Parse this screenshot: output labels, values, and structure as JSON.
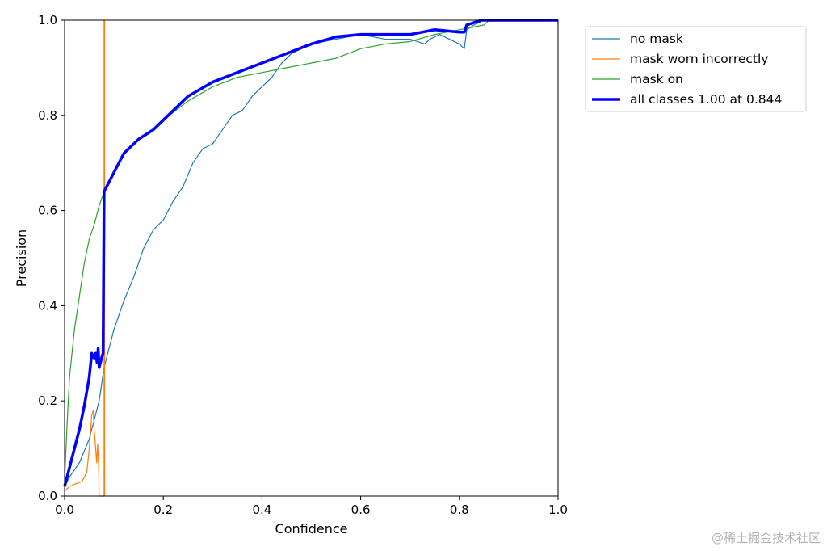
{
  "chart_data": {
    "type": "line",
    "title": "",
    "xlabel": "Confidence",
    "ylabel": "Precision",
    "xlim": [
      0,
      1
    ],
    "ylim": [
      0,
      1
    ],
    "xticks": [
      "0.0",
      "0.2",
      "0.4",
      "0.6",
      "0.8",
      "1.0"
    ],
    "yticks": [
      "0.0",
      "0.2",
      "0.4",
      "0.6",
      "0.8",
      "1.0"
    ],
    "grid": false,
    "legend_position": "outside-top-right",
    "series": [
      {
        "name": "no mask",
        "color": "#1f77b4",
        "points": [
          [
            0,
            0.02
          ],
          [
            0.01,
            0.04
          ],
          [
            0.03,
            0.07
          ],
          [
            0.05,
            0.12
          ],
          [
            0.07,
            0.2
          ],
          [
            0.08,
            0.27
          ],
          [
            0.09,
            0.31
          ],
          [
            0.1,
            0.35
          ],
          [
            0.12,
            0.41
          ],
          [
            0.14,
            0.46
          ],
          [
            0.16,
            0.52
          ],
          [
            0.18,
            0.56
          ],
          [
            0.2,
            0.58
          ],
          [
            0.22,
            0.62
          ],
          [
            0.24,
            0.65
          ],
          [
            0.26,
            0.7
          ],
          [
            0.28,
            0.73
          ],
          [
            0.3,
            0.74
          ],
          [
            0.32,
            0.77
          ],
          [
            0.34,
            0.8
          ],
          [
            0.36,
            0.81
          ],
          [
            0.38,
            0.84
          ],
          [
            0.4,
            0.86
          ],
          [
            0.42,
            0.88
          ],
          [
            0.44,
            0.91
          ],
          [
            0.46,
            0.93
          ],
          [
            0.48,
            0.94
          ],
          [
            0.5,
            0.95
          ],
          [
            0.55,
            0.96
          ],
          [
            0.6,
            0.97
          ],
          [
            0.65,
            0.96
          ],
          [
            0.7,
            0.96
          ],
          [
            0.73,
            0.95
          ],
          [
            0.74,
            0.96
          ],
          [
            0.76,
            0.97
          ],
          [
            0.78,
            0.96
          ],
          [
            0.8,
            0.95
          ],
          [
            0.81,
            0.94
          ],
          [
            0.815,
            0.98
          ],
          [
            0.83,
            0.99
          ],
          [
            0.85,
            1.0
          ],
          [
            1.0,
            1.0
          ]
        ]
      },
      {
        "name": "mask worn incorrectly",
        "color": "#ff7f0e",
        "points": [
          [
            0,
            0.01
          ],
          [
            0.01,
            0.02
          ],
          [
            0.02,
            0.025
          ],
          [
            0.035,
            0.03
          ],
          [
            0.045,
            0.05
          ],
          [
            0.05,
            0.1
          ],
          [
            0.055,
            0.17
          ],
          [
            0.058,
            0.18
          ],
          [
            0.06,
            0.14
          ],
          [
            0.063,
            0.1
          ],
          [
            0.065,
            0.07
          ],
          [
            0.067,
            0.11
          ],
          [
            0.069,
            0.06
          ],
          [
            0.07,
            0.0
          ],
          [
            0.075,
            0.0
          ],
          [
            0.08,
            0.0
          ],
          [
            0.08,
            1.0
          ],
          [
            0.081,
            1.0
          ],
          [
            0.081,
            0.0
          ]
        ]
      },
      {
        "name": "mask on",
        "color": "#2ca02c",
        "points": [
          [
            0,
            0.03
          ],
          [
            0.005,
            0.15
          ],
          [
            0.01,
            0.25
          ],
          [
            0.02,
            0.35
          ],
          [
            0.03,
            0.42
          ],
          [
            0.04,
            0.49
          ],
          [
            0.05,
            0.54
          ],
          [
            0.06,
            0.57
          ],
          [
            0.07,
            0.61
          ],
          [
            0.08,
            0.64
          ],
          [
            0.1,
            0.68
          ],
          [
            0.12,
            0.72
          ],
          [
            0.15,
            0.75
          ],
          [
            0.18,
            0.77
          ],
          [
            0.2,
            0.79
          ],
          [
            0.25,
            0.83
          ],
          [
            0.3,
            0.86
          ],
          [
            0.35,
            0.88
          ],
          [
            0.4,
            0.89
          ],
          [
            0.45,
            0.9
          ],
          [
            0.5,
            0.91
          ],
          [
            0.55,
            0.92
          ],
          [
            0.6,
            0.94
          ],
          [
            0.65,
            0.95
          ],
          [
            0.7,
            0.955
          ],
          [
            0.75,
            0.97
          ],
          [
            0.8,
            0.98
          ],
          [
            0.85,
            0.99
          ],
          [
            0.86,
            1.0
          ],
          [
            1.0,
            1.0
          ]
        ]
      },
      {
        "name": "all classes 1.00 at 0.844",
        "color": "#0000ff",
        "points": [
          [
            0,
            0.02
          ],
          [
            0.01,
            0.06
          ],
          [
            0.02,
            0.1
          ],
          [
            0.03,
            0.14
          ],
          [
            0.04,
            0.19
          ],
          [
            0.05,
            0.25
          ],
          [
            0.055,
            0.3
          ],
          [
            0.06,
            0.29
          ],
          [
            0.063,
            0.3
          ],
          [
            0.066,
            0.28
          ],
          [
            0.068,
            0.31
          ],
          [
            0.07,
            0.27
          ],
          [
            0.075,
            0.29
          ],
          [
            0.078,
            0.3
          ],
          [
            0.08,
            0.64
          ],
          [
            0.09,
            0.66
          ],
          [
            0.1,
            0.68
          ],
          [
            0.12,
            0.72
          ],
          [
            0.15,
            0.75
          ],
          [
            0.18,
            0.77
          ],
          [
            0.2,
            0.79
          ],
          [
            0.25,
            0.84
          ],
          [
            0.3,
            0.87
          ],
          [
            0.35,
            0.89
          ],
          [
            0.4,
            0.91
          ],
          [
            0.45,
            0.93
          ],
          [
            0.5,
            0.95
          ],
          [
            0.55,
            0.965
          ],
          [
            0.6,
            0.97
          ],
          [
            0.65,
            0.97
          ],
          [
            0.7,
            0.97
          ],
          [
            0.75,
            0.98
          ],
          [
            0.8,
            0.975
          ],
          [
            0.81,
            0.975
          ],
          [
            0.815,
            0.99
          ],
          [
            0.83,
            0.995
          ],
          [
            0.844,
            1.0
          ],
          [
            1.0,
            1.0
          ]
        ]
      }
    ]
  },
  "watermark": "@稀土掘金技术社区"
}
